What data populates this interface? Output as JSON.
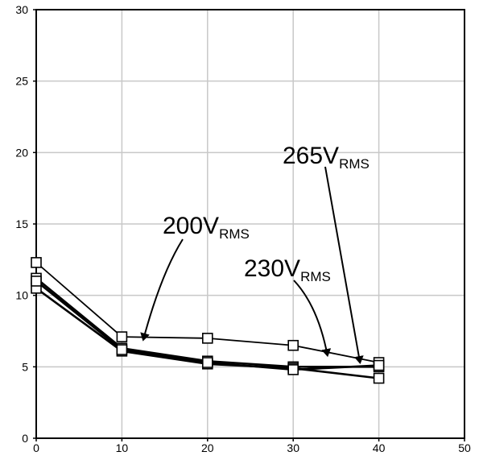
{
  "chart_data": {
    "type": "line",
    "title": "",
    "xlabel": "",
    "ylabel": "",
    "xlim": [
      0,
      50
    ],
    "ylim": [
      0,
      30
    ],
    "x_ticks": [
      0,
      10,
      20,
      30,
      40,
      50
    ],
    "y_ticks": [
      0,
      5,
      10,
      15,
      20,
      25,
      30
    ],
    "grid": true,
    "marker": "square",
    "colors": {
      "line": "#000000",
      "grid": "#c8c8c8",
      "axis": "#000000"
    },
    "series": [
      {
        "name": "200VRMS",
        "x": [
          0,
          10,
          20,
          30,
          40
        ],
        "y": [
          12.3,
          7.1,
          7.0,
          6.5,
          5.3
        ]
      },
      {
        "name": "230VRMS",
        "x": [
          0,
          10,
          20,
          30,
          40
        ],
        "y": [
          11.2,
          6.3,
          5.4,
          5.0,
          5.0
        ]
      },
      {
        "name": "265VRMS",
        "x": [
          0,
          10,
          20,
          30,
          40
        ],
        "y": [
          10.5,
          6.1,
          5.2,
          4.9,
          4.2
        ]
      },
      {
        "name": "",
        "x": [
          0,
          10,
          20,
          30,
          40
        ],
        "y": [
          11.0,
          6.2,
          5.3,
          4.8,
          5.1
        ]
      }
    ],
    "annotations": [
      {
        "main": "200V",
        "sub": "RMS",
        "points_to_x": 12.5,
        "points_to_y": 6.9
      },
      {
        "main": "230V",
        "sub": "RMS",
        "points_to_x": 34,
        "points_to_y": 5.8
      },
      {
        "main": "265V",
        "sub": "RMS",
        "points_to_x": 37.8,
        "points_to_y": 5.3
      }
    ]
  }
}
